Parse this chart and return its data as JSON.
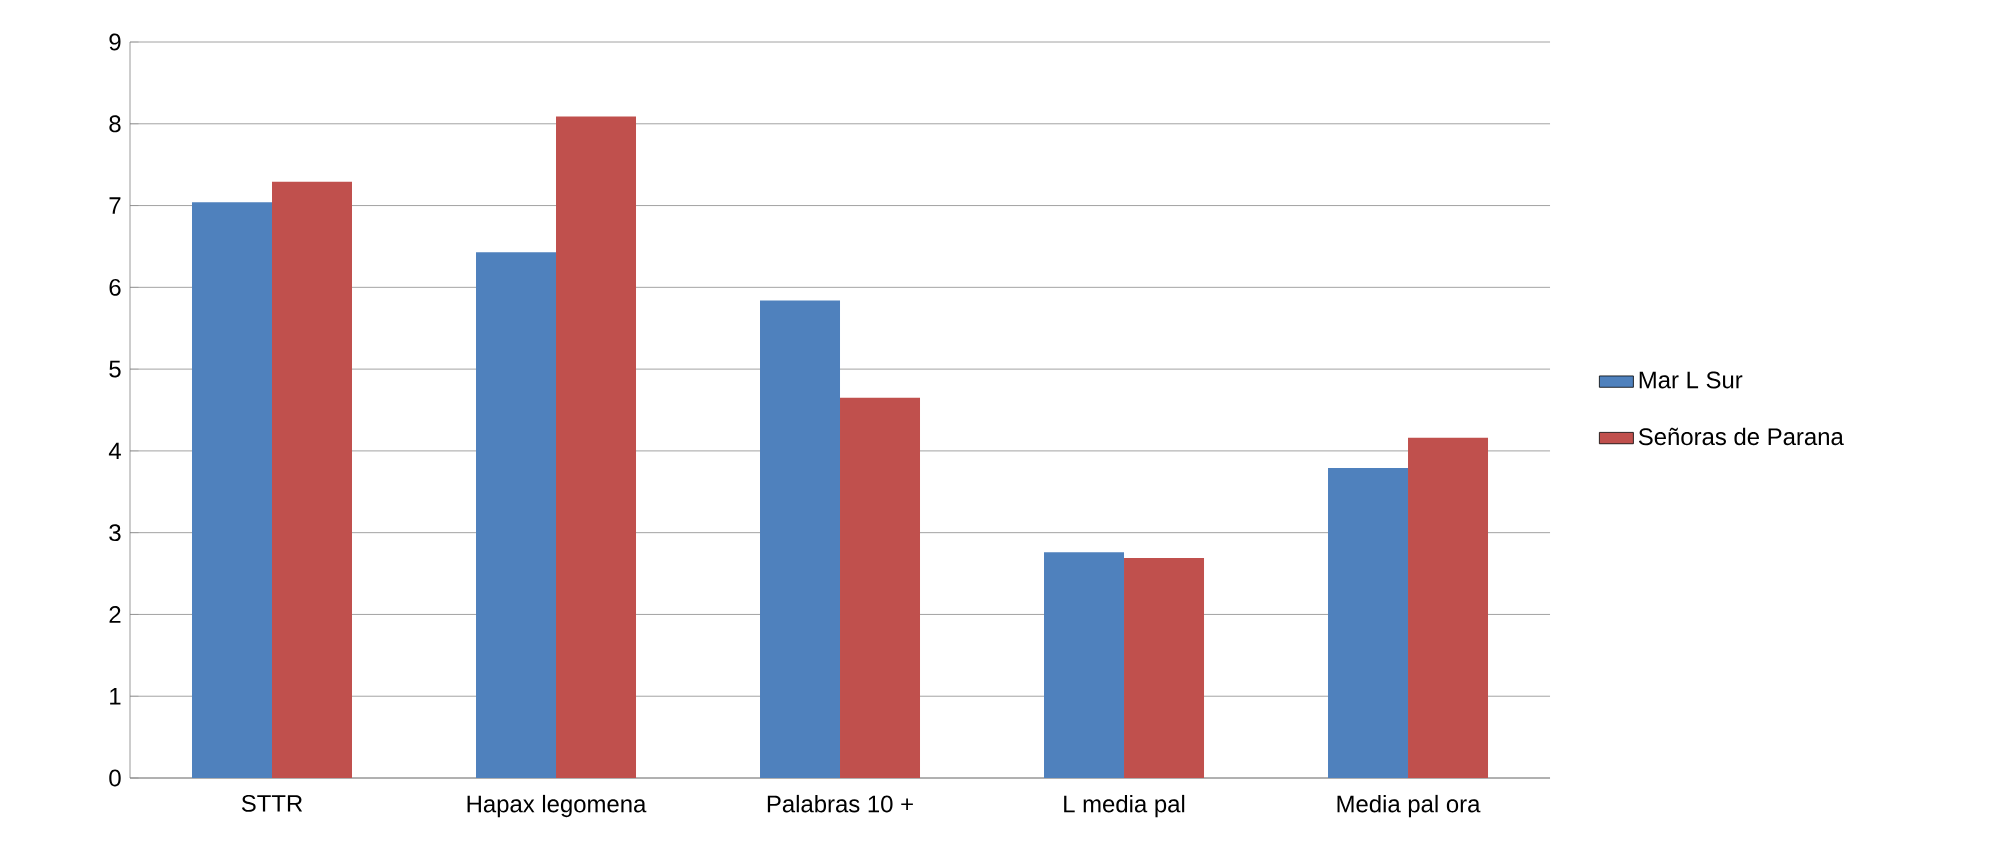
{
  "chart_data": {
    "type": "bar",
    "categories": [
      "STTR",
      "Hapax legomena",
      "Palabras 10 +",
      "L media pal",
      "Media pal ora"
    ],
    "series": [
      {
        "name": "Mar L Sur",
        "color": "#4f81bd",
        "values": [
          7.04,
          6.43,
          5.84,
          2.76,
          3.79
        ]
      },
      {
        "name": "Señoras de Parana",
        "color": "#c0504d",
        "values": [
          7.29,
          8.09,
          4.65,
          2.69,
          4.16
        ]
      }
    ],
    "ylim": [
      0,
      9
    ],
    "yticks": [
      0,
      1,
      2,
      3,
      4,
      5,
      6,
      7,
      8,
      9
    ],
    "grid": "y",
    "legend": "right"
  }
}
